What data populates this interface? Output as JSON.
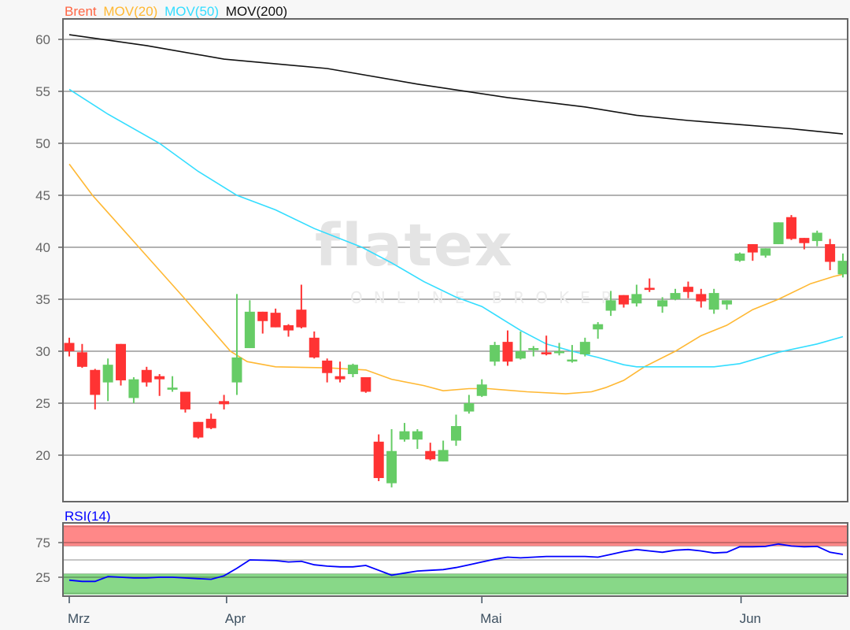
{
  "legend": {
    "brent": "Brent",
    "mov20": "MOV(20)",
    "mov50": "MOV(50)",
    "mov200": "MOV(200)",
    "rsi": "RSI(14)"
  },
  "watermark": {
    "logo": "flatex",
    "tagline": "ONLINE BROKER"
  },
  "colors": {
    "up": "#66cc66",
    "down": "#ff3333",
    "brent": "#ff6644",
    "mov20": "#ffb833",
    "mov50": "#33ddff",
    "mov200": "#111111",
    "rsi": "#0000ff",
    "overbought": "#ff8888",
    "oversold": "#88d888"
  },
  "chart_data": [
    {
      "type": "candlestick",
      "ylim": [
        16,
        62.2
      ],
      "yticks": [
        "20",
        "25",
        "30",
        "35",
        "40",
        "45",
        "50",
        "55",
        "60"
      ],
      "grid": true,
      "x_ticks": [
        {
          "label": "Mrz",
          "index": 0
        },
        {
          "label": "Apr",
          "index": 12.2
        },
        {
          "label": "Mai",
          "index": 32
        },
        {
          "label": "Jun",
          "index": 52.1
        }
      ],
      "ohlc": [
        [
          30.8,
          31.3,
          29.5,
          30.0
        ],
        [
          29.9,
          30.7,
          28.4,
          28.5
        ],
        [
          28.2,
          28.3,
          24.4,
          25.8
        ],
        [
          27.0,
          29.3,
          25.2,
          28.7
        ],
        [
          30.7,
          30.7,
          26.7,
          27.2
        ],
        [
          25.5,
          27.5,
          25.0,
          27.3
        ],
        [
          28.2,
          28.5,
          26.6,
          27.0
        ],
        [
          27.6,
          27.8,
          25.7,
          27.3
        ],
        [
          26.3,
          27.6,
          26.1,
          26.5
        ],
        [
          26.1,
          26.1,
          24.1,
          24.4
        ],
        [
          23.2,
          23.2,
          21.6,
          21.7
        ],
        [
          23.5,
          24.0,
          22.5,
          22.6
        ],
        [
          25.2,
          25.8,
          24.4,
          24.9
        ],
        [
          27.0,
          35.5,
          25.8,
          29.4
        ],
        [
          30.3,
          34.9,
          30.3,
          33.8
        ],
        [
          33.8,
          33.8,
          31.7,
          32.9
        ],
        [
          33.7,
          34.1,
          32.3,
          32.3
        ],
        [
          32.5,
          32.6,
          31.4,
          32.0
        ],
        [
          34.0,
          36.4,
          32.2,
          32.3
        ],
        [
          31.3,
          31.9,
          29.3,
          29.4
        ],
        [
          29.1,
          29.3,
          27.0,
          27.9
        ],
        [
          27.6,
          29.0,
          27.0,
          27.3
        ],
        [
          27.8,
          28.8,
          27.5,
          28.7
        ],
        [
          27.5,
          27.5,
          26.0,
          26.1
        ],
        [
          21.3,
          22.0,
          17.5,
          17.8
        ],
        [
          17.3,
          22.5,
          16.9,
          20.4
        ],
        [
          21.5,
          23.1,
          21.3,
          22.3
        ],
        [
          21.5,
          22.5,
          20.6,
          22.3
        ],
        [
          20.4,
          21.2,
          19.5,
          19.6
        ],
        [
          19.4,
          21.4,
          19.4,
          20.5
        ],
        [
          21.4,
          23.9,
          20.9,
          22.8
        ],
        [
          24.2,
          25.8,
          24.0,
          25.0
        ],
        [
          25.7,
          27.3,
          25.6,
          26.8
        ],
        [
          29.0,
          30.9,
          28.6,
          30.6
        ],
        [
          30.9,
          32.0,
          28.6,
          29.0
        ],
        [
          29.3,
          31.9,
          29.2,
          30.0
        ],
        [
          30.1,
          30.5,
          29.5,
          30.3
        ],
        [
          29.9,
          31.5,
          29.6,
          29.7
        ],
        [
          29.95,
          30.8,
          29.6,
          30.0
        ],
        [
          29.15,
          30.6,
          28.9,
          29.2
        ],
        [
          29.7,
          31.3,
          29.5,
          30.9
        ],
        [
          32.1,
          32.8,
          31.2,
          32.6
        ],
        [
          33.9,
          35.8,
          33.4,
          34.9
        ],
        [
          35.4,
          35.4,
          34.2,
          34.5
        ],
        [
          34.6,
          36.4,
          34.3,
          35.5
        ],
        [
          36.1,
          37.0,
          35.7,
          35.9
        ],
        [
          34.3,
          35.2,
          33.7,
          34.9
        ],
        [
          35.0,
          36.0,
          34.9,
          35.6
        ],
        [
          36.2,
          36.7,
          35.1,
          35.7
        ],
        [
          35.5,
          36.0,
          34.2,
          34.8
        ],
        [
          34.0,
          36.0,
          33.6,
          35.6
        ],
        [
          34.5,
          34.9,
          34.0,
          34.9
        ],
        [
          38.7,
          39.5,
          38.6,
          39.4
        ],
        [
          40.3,
          40.3,
          38.7,
          39.5
        ],
        [
          39.2,
          39.9,
          39.0,
          39.9
        ],
        [
          40.3,
          42.4,
          40.3,
          42.4
        ],
        [
          42.9,
          43.1,
          40.7,
          40.8
        ],
        [
          40.9,
          40.9,
          39.8,
          40.4
        ],
        [
          40.6,
          41.6,
          40.1,
          41.4
        ],
        [
          40.3,
          40.8,
          37.8,
          38.6
        ],
        [
          37.4,
          39.4,
          37.1,
          38.7
        ]
      ],
      "series": [
        {
          "name": "MOV(20)",
          "points": [
            [
              0,
              48
            ],
            [
              1.8,
              45
            ],
            [
              5.4,
              40
            ],
            [
              9,
              35
            ],
            [
              12.5,
              30
            ],
            [
              13.8,
              29
            ],
            [
              16,
              28.5
            ],
            [
              20,
              28.4
            ],
            [
              23,
              28.2
            ],
            [
              25,
              27.3
            ],
            [
              27.5,
              26.7
            ],
            [
              29,
              26.2
            ],
            [
              31,
              26.4
            ],
            [
              32.5,
              26.4
            ],
            [
              35.5,
              26.1
            ],
            [
              38.5,
              25.9
            ],
            [
              40.5,
              26.1
            ],
            [
              41.6,
              26.5
            ],
            [
              43,
              27.2
            ],
            [
              44.6,
              28.5
            ],
            [
              47,
              30
            ],
            [
              49,
              31.5
            ],
            [
              51,
              32.5
            ],
            [
              53,
              34
            ],
            [
              55,
              35
            ],
            [
              57.5,
              36.5
            ],
            [
              59.3,
              37.2
            ],
            [
              60,
              37.4
            ]
          ]
        },
        {
          "name": "MOV(50)",
          "points": [
            [
              0,
              55.2
            ],
            [
              3,
              52.8
            ],
            [
              7,
              50
            ],
            [
              10,
              47.3
            ],
            [
              13,
              45
            ],
            [
              16,
              43.6
            ],
            [
              19,
              41.8
            ],
            [
              22.7,
              40
            ],
            [
              25,
              38.5
            ],
            [
              27.5,
              36.7
            ],
            [
              30,
              35.2
            ],
            [
              32,
              34.3
            ],
            [
              35,
              32
            ],
            [
              37,
              30.7
            ],
            [
              39,
              30
            ],
            [
              41,
              29.4
            ],
            [
              43,
              28.7
            ],
            [
              44,
              28.5
            ],
            [
              48,
              28.5
            ],
            [
              50,
              28.5
            ],
            [
              52,
              28.8
            ],
            [
              55,
              29.9
            ],
            [
              58,
              30.7
            ],
            [
              60,
              31.4
            ]
          ]
        },
        {
          "name": "MOV(200)",
          "points": [
            [
              0,
              60.45
            ],
            [
              6,
              59.4
            ],
            [
              12,
              58.1
            ],
            [
              20,
              57.2
            ],
            [
              27,
              55.7
            ],
            [
              34,
              54.4
            ],
            [
              40,
              53.5
            ],
            [
              44,
              52.7
            ],
            [
              48,
              52.2
            ],
            [
              52,
              51.8
            ],
            [
              56,
              51.4
            ],
            [
              60,
              50.9
            ]
          ]
        }
      ]
    },
    {
      "type": "line",
      "name": "RSI(14)",
      "ylim": [
        0,
        100
      ],
      "yticks": [
        "25",
        "75"
      ],
      "bands": {
        "overbought": [
          70,
          100
        ],
        "oversold": [
          0,
          30
        ]
      },
      "values": [
        20.8,
        19,
        19,
        26,
        25,
        24,
        24,
        25,
        25,
        24,
        23,
        22,
        27,
        38,
        50,
        49.5,
        49,
        47,
        48,
        43,
        41,
        40,
        40,
        42,
        35,
        28,
        31,
        34,
        35,
        36,
        39,
        43,
        47,
        51,
        54,
        53,
        54,
        55,
        55,
        55,
        55,
        54,
        58,
        62,
        65,
        63,
        61,
        64,
        65,
        63,
        60,
        61,
        69,
        69,
        69.5,
        73,
        70,
        69,
        69.5,
        61,
        58
      ]
    }
  ]
}
